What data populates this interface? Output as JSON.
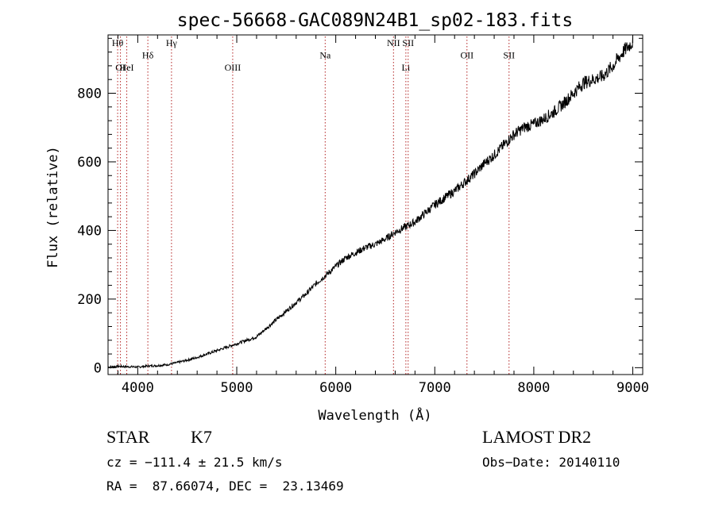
{
  "chart_data": {
    "type": "line",
    "title": "spec-56668-GAC089N24B1_sp02-183.fits",
    "xlabel": "Wavelength (Å)",
    "ylabel": "Flux (relative)",
    "xlim": [
      3700,
      9100
    ],
    "ylim": [
      -20,
      970
    ],
    "x_ticks": [
      4000,
      5000,
      6000,
      7000,
      8000,
      9000
    ],
    "y_ticks": [
      0,
      200,
      400,
      600,
      800
    ],
    "grid": false,
    "series": [
      {
        "x": [
          3700,
          3800,
          3900,
          4000,
          4100,
          4200,
          4300,
          4400,
          4500,
          4600,
          4700,
          4800,
          4900,
          5000,
          5100,
          5200,
          5300,
          5400,
          5500,
          5600,
          5700,
          5800,
          5900,
          6000,
          6100,
          6200,
          6300,
          6400,
          6500,
          6600,
          6700,
          6800,
          6900,
          7000,
          7100,
          7200,
          7300,
          7400,
          7500,
          7600,
          7700,
          7800,
          7900,
          8000,
          8100,
          8200,
          8300,
          8400,
          8500,
          8600,
          8700,
          8800,
          8900,
          9000
        ],
        "y": [
          2,
          4,
          3,
          2,
          5,
          6,
          9,
          15,
          22,
          30,
          40,
          50,
          60,
          70,
          80,
          90,
          115,
          140,
          165,
          190,
          215,
          245,
          270,
          295,
          320,
          335,
          350,
          360,
          375,
          395,
          410,
          425,
          450,
          475,
          495,
          515,
          540,
          565,
          595,
          620,
          650,
          680,
          700,
          710,
          725,
          745,
          770,
          800,
          830,
          840,
          850,
          880,
          920,
          950
        ]
      }
    ],
    "lines": [
      {
        "label": "Hθ",
        "x": 3797,
        "row": 1
      },
      {
        "label": "OI",
        "x": 3825,
        "row": 2
      },
      {
        "label": "HeI",
        "x": 3889,
        "row": 2
      },
      {
        "label": "Hδ",
        "x": 4102,
        "row": 1.5
      },
      {
        "label": "Hγ",
        "x": 4341,
        "row": 1
      },
      {
        "label": "OIII",
        "x": 4959,
        "row": 2
      },
      {
        "label": "Na",
        "x": 5893,
        "row": 1.5
      },
      {
        "label": "NII",
        "x": 6583,
        "row": 1
      },
      {
        "label": "Li",
        "x": 6708,
        "row": 2
      },
      {
        "label": "SII",
        "x": 6731,
        "row": 1
      },
      {
        "label": "OII",
        "x": 7325,
        "row": 1.5
      },
      {
        "label": "SII",
        "x": 7750,
        "row": 1.5
      }
    ]
  },
  "info": {
    "object_class": "STAR",
    "subclass": "K7",
    "survey": "LAMOST DR2",
    "cz": "cz = −111.4 ± 21.5 km/s",
    "obs_date": "Obs−Date: 20140110",
    "radec": "RA =  87.66074, DEC =  23.13469"
  }
}
